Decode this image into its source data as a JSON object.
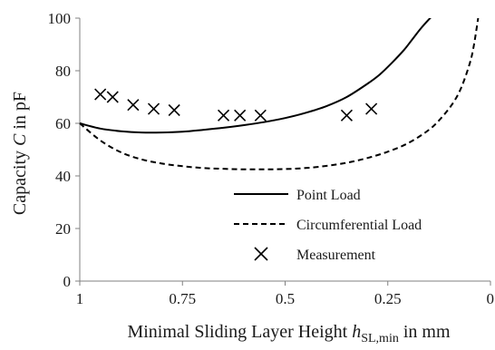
{
  "chart_data": {
    "type": "line",
    "xlabel_prefix": "Minimal Sliding Layer Height ",
    "xlabel_var": "h",
    "xlabel_sub": "SL,min",
    "xlabel_suffix": " in mm",
    "ylabel_prefix": "Capacity ",
    "ylabel_var": "C",
    "ylabel_suffix": " in pF",
    "xlim": [
      1,
      0
    ],
    "ylim": [
      0,
      100
    ],
    "x_reversed": true,
    "x_ticks": [
      1,
      0.75,
      0.5,
      0.25,
      0
    ],
    "x_tick_labels": [
      "1",
      "0.75",
      "0.5",
      "0.25",
      "0"
    ],
    "y_ticks": [
      0,
      20,
      40,
      60,
      80,
      100
    ],
    "y_tick_labels": [
      "0",
      "20",
      "40",
      "60",
      "80",
      "100"
    ],
    "grid": false,
    "legend_placement": "bottom-right",
    "series": [
      {
        "name": "Point Load",
        "style": "solid",
        "color": "#000000",
        "x": [
          1.0,
          0.95,
          0.9,
          0.85,
          0.8,
          0.75,
          0.7,
          0.65,
          0.6,
          0.55,
          0.5,
          0.45,
          0.4,
          0.35,
          0.3,
          0.27,
          0.24,
          0.21,
          0.19,
          0.17,
          0.15,
          0.14
        ],
        "y": [
          60.0,
          58.0,
          57.0,
          56.5,
          56.5,
          56.8,
          57.5,
          58.3,
          59.3,
          60.5,
          62.0,
          64.0,
          66.5,
          70.0,
          75.0,
          78.5,
          83.0,
          88.0,
          92.0,
          96.0,
          99.5,
          101.0
        ]
      },
      {
        "name": "Circumferential  Load",
        "style": "dashed",
        "color": "#000000",
        "x": [
          1.0,
          0.95,
          0.9,
          0.85,
          0.8,
          0.75,
          0.7,
          0.65,
          0.6,
          0.55,
          0.5,
          0.45,
          0.4,
          0.35,
          0.3,
          0.25,
          0.2,
          0.15,
          0.12,
          0.09,
          0.07,
          0.05,
          0.04,
          0.03
        ],
        "y": [
          60.0,
          53.5,
          49.0,
          46.3,
          44.7,
          43.7,
          43.0,
          42.7,
          42.5,
          42.5,
          42.6,
          43.0,
          43.8,
          45.0,
          46.8,
          49.2,
          52.5,
          57.5,
          62.0,
          68.0,
          74.0,
          83.0,
          90.0,
          100.0
        ]
      }
    ],
    "measurements": {
      "name": "Measurement",
      "marker": "x",
      "color": "#000000",
      "x": [
        0.95,
        0.92,
        0.87,
        0.82,
        0.77,
        0.65,
        0.61,
        0.56,
        0.35,
        0.29
      ],
      "y": [
        71,
        70,
        67,
        65.5,
        65,
        63,
        63,
        63,
        63,
        65.5
      ]
    }
  }
}
